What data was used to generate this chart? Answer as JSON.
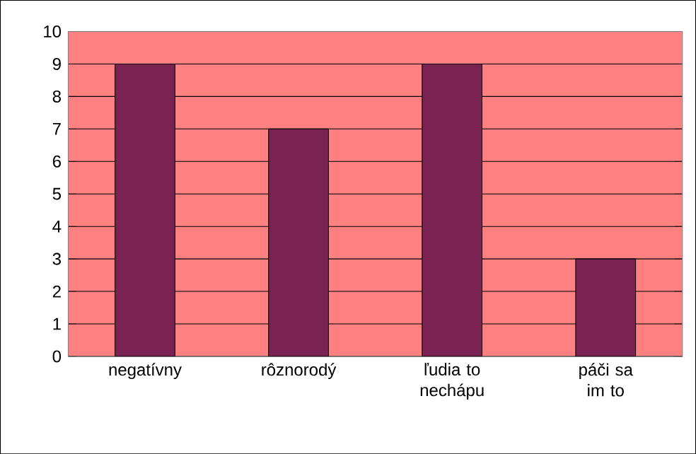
{
  "chart_data": {
    "type": "bar",
    "categories": [
      "negatívny",
      "rôznorodý",
      "ľudia to nechápu",
      "páči sa im to"
    ],
    "values": [
      9,
      7,
      9,
      3
    ],
    "color": "#7a2352",
    "ylim": [
      0,
      10
    ],
    "yticks": [
      0,
      1,
      2,
      3,
      4,
      5,
      6,
      7,
      8,
      9,
      10
    ],
    "grid": "y"
  }
}
